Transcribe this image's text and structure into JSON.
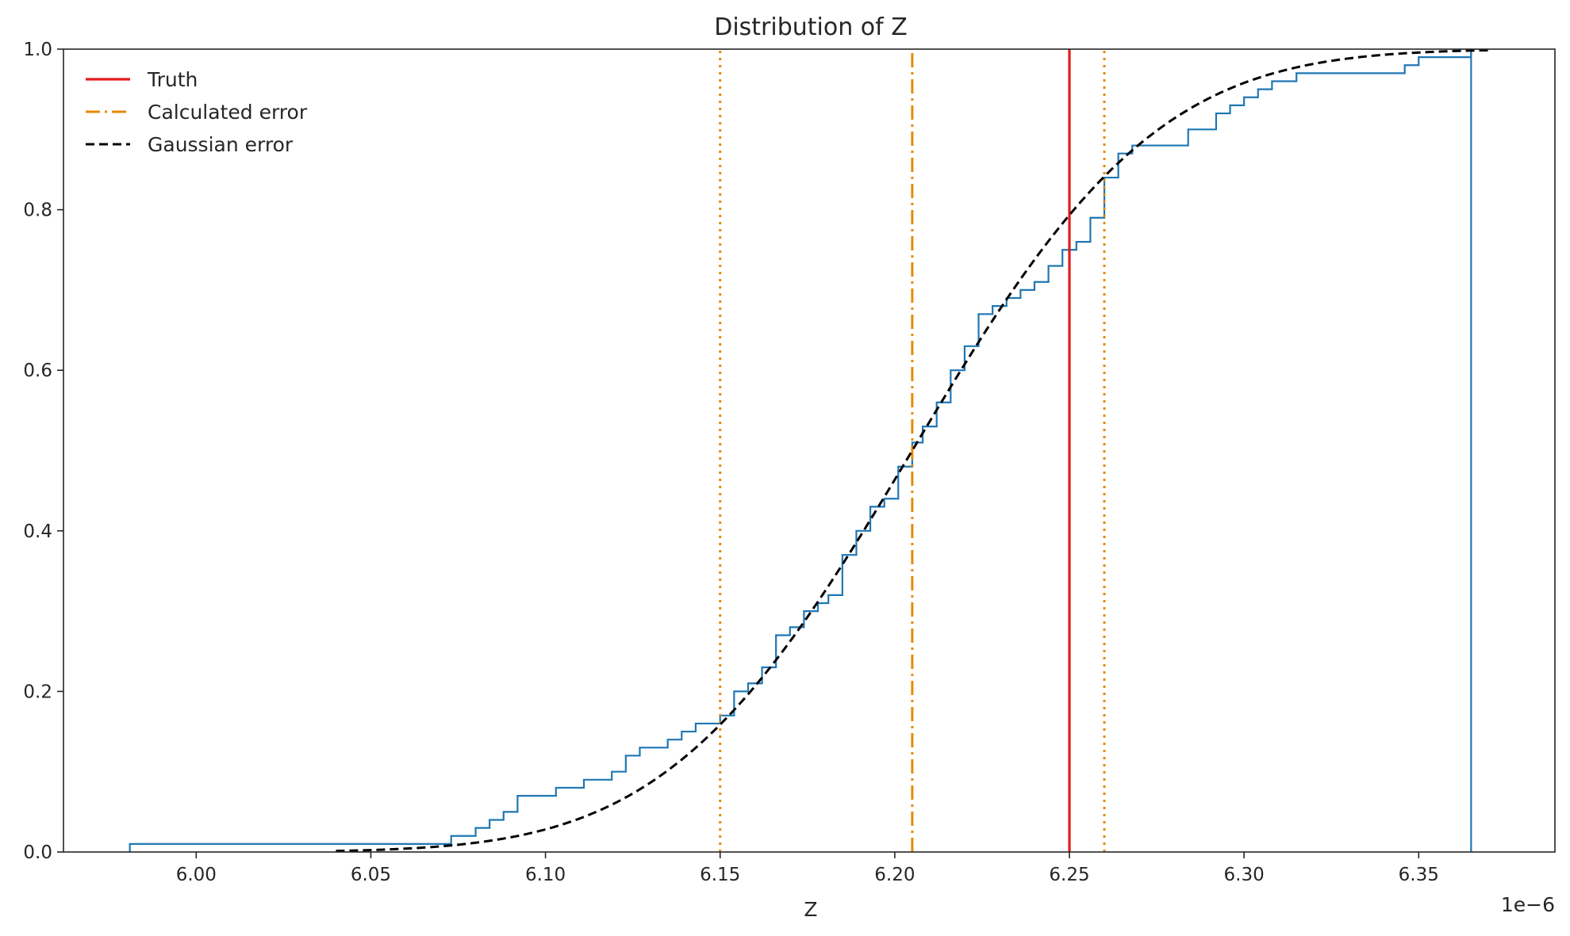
{
  "chart_data": {
    "type": "line",
    "title": "Distribution of Z",
    "xlabel": "Z",
    "ylabel": "",
    "x_scale_label": "1e−6",
    "xlim": [
      5.962,
      6.389
    ],
    "ylim": [
      0.0,
      1.0
    ],
    "xticks": [
      6.0,
      6.05,
      6.1,
      6.15,
      6.2,
      6.25,
      6.3,
      6.35
    ],
    "xtick_labels": [
      "6.00",
      "6.05",
      "6.10",
      "6.15",
      "6.20",
      "6.25",
      "6.30",
      "6.35"
    ],
    "yticks": [
      0.0,
      0.2,
      0.4,
      0.6,
      0.8,
      1.0
    ],
    "ytick_labels": [
      "0.0",
      "0.2",
      "0.4",
      "0.6",
      "0.8",
      "1.0"
    ],
    "grid": false,
    "legend_position": "top-left",
    "colors": {
      "ecdf": "#1f77b4",
      "truth": "#e31a1c",
      "calculated": "#e68a00",
      "gaussian": "#000000",
      "axis": "#262626"
    },
    "series": [
      {
        "kind": "step-ecdf",
        "x": [
          5.981,
          6.073,
          6.08,
          6.084,
          6.088,
          6.092,
          6.103,
          6.111,
          6.119,
          6.123,
          6.127,
          6.135,
          6.139,
          6.143,
          6.15,
          6.154,
          6.158,
          6.162,
          6.166,
          6.17,
          6.174,
          6.178,
          6.181,
          6.185,
          6.189,
          6.193,
          6.197,
          6.201,
          6.205,
          6.208,
          6.212,
          6.216,
          6.22,
          6.224,
          6.228,
          6.232,
          6.236,
          6.24,
          6.244,
          6.248,
          6.252,
          6.256,
          6.26,
          6.264,
          6.268,
          6.284,
          6.292,
          6.296,
          6.3,
          6.304,
          6.308,
          6.315,
          6.319,
          6.346,
          6.35,
          6.365
        ],
        "y": [
          0.01,
          0.02,
          0.03,
          0.04,
          0.05,
          0.07,
          0.08,
          0.09,
          0.1,
          0.12,
          0.13,
          0.14,
          0.15,
          0.16,
          0.17,
          0.2,
          0.21,
          0.23,
          0.27,
          0.28,
          0.3,
          0.31,
          0.32,
          0.37,
          0.4,
          0.43,
          0.44,
          0.48,
          0.51,
          0.53,
          0.56,
          0.6,
          0.63,
          0.67,
          0.68,
          0.69,
          0.7,
          0.71,
          0.73,
          0.75,
          0.76,
          0.79,
          0.84,
          0.87,
          0.88,
          0.9,
          0.92,
          0.93,
          0.94,
          0.95,
          0.96,
          0.97,
          0.97,
          0.98,
          0.99,
          1.0
        ]
      },
      {
        "name": "Truth",
        "kind": "vline",
        "x": 6.25,
        "style": "solid"
      },
      {
        "name": "Calculated error",
        "kind": "vline",
        "x": 6.205,
        "style": "dashdot"
      },
      {
        "kind": "vline",
        "x": [
          6.15,
          6.26
        ],
        "style": "dotted"
      },
      {
        "name": "Gaussian error",
        "kind": "normal-cdf",
        "mean": 6.205,
        "sd": 0.055,
        "x_range": [
          6.04,
          6.37
        ],
        "style": "dashed"
      }
    ]
  }
}
